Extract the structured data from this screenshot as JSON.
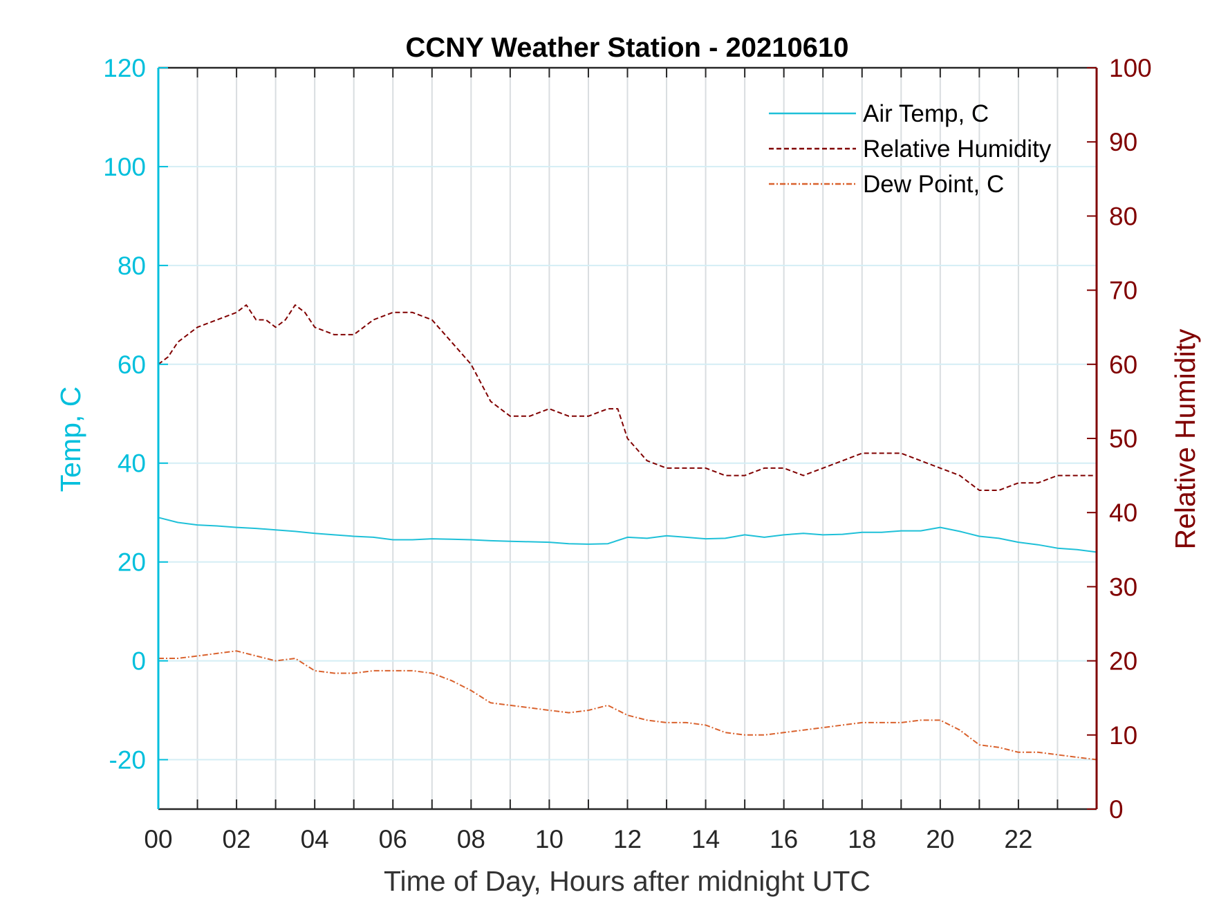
{
  "chart_data": {
    "type": "line",
    "title": "CCNY Weather Station - 20210610",
    "xlabel": "Time of Day, Hours after midnight UTC",
    "ylabel_left": "Temp, C",
    "ylabel_right": "Relative Humidity",
    "xlim": [
      0,
      24
    ],
    "ylim_left": [
      -30,
      120
    ],
    "ylim_right": [
      0,
      100
    ],
    "x_ticks": [
      0,
      2,
      4,
      6,
      8,
      10,
      12,
      14,
      16,
      18,
      20,
      22
    ],
    "x_tick_labels": [
      "00",
      "02",
      "04",
      "06",
      "08",
      "10",
      "12",
      "14",
      "16",
      "18",
      "20",
      "22"
    ],
    "y_left_ticks": [
      -20,
      0,
      20,
      40,
      60,
      80,
      100,
      120
    ],
    "y_left_tick_labels": [
      "-20",
      "0",
      "20",
      "40",
      "60",
      "80",
      "100",
      "120"
    ],
    "y_right_ticks": [
      0,
      10,
      20,
      30,
      40,
      50,
      60,
      70,
      80,
      90,
      100
    ],
    "y_right_tick_labels": [
      "0",
      "10",
      "20",
      "30",
      "40",
      "50",
      "60",
      "70",
      "80",
      "90",
      "100"
    ],
    "grid": true,
    "legend_position": "top-right",
    "colors": {
      "left_axis": "#00bfdc",
      "right_axis": "#800000",
      "grid_vertical": "#d9dde0",
      "grid_horizontal": "#d4eef5"
    },
    "series": [
      {
        "name": "Air Temp, C",
        "axis": "left",
        "color": "#1ec0d8",
        "dash": "solid",
        "x": [
          0,
          0.5,
          1,
          1.5,
          2,
          2.5,
          3,
          3.5,
          4,
          4.5,
          5,
          5.5,
          6,
          6.5,
          7,
          7.5,
          8,
          8.5,
          9,
          9.5,
          10,
          10.5,
          11,
          11.5,
          12,
          12.5,
          13,
          13.5,
          14,
          14.5,
          15,
          15.5,
          16,
          16.5,
          17,
          17.5,
          18,
          18.5,
          19,
          19.5,
          20,
          20.5,
          21,
          21.5,
          22,
          22.5,
          23,
          23.5,
          24
        ],
        "y": [
          29,
          28,
          27.5,
          27.3,
          27,
          26.8,
          26.5,
          26.2,
          25.8,
          25.5,
          25.2,
          25,
          24.5,
          24.5,
          24.7,
          24.6,
          24.5,
          24.3,
          24.2,
          24.1,
          24,
          23.7,
          23.6,
          23.7,
          25,
          24.8,
          25.3,
          25,
          24.7,
          24.8,
          25.5,
          25,
          25.5,
          25.8,
          25.5,
          25.6,
          26,
          26,
          26.3,
          26.3,
          27,
          26.2,
          25.2,
          24.8,
          24,
          23.5,
          22.8,
          22.5,
          22
        ]
      },
      {
        "name": "Relative Humidity",
        "axis": "right",
        "color": "#800000",
        "dash": "dashed",
        "x": [
          0,
          0.25,
          0.5,
          0.75,
          1,
          1.5,
          2,
          2.25,
          2.5,
          2.75,
          3,
          3.25,
          3.5,
          3.75,
          4,
          4.5,
          5,
          5.5,
          6,
          6.5,
          7,
          7.5,
          8,
          8.5,
          9,
          9.5,
          10,
          10.5,
          11,
          11.5,
          11.75,
          12,
          12.5,
          13,
          13.5,
          14,
          14.5,
          15,
          15.5,
          16,
          16.5,
          17,
          17.5,
          18,
          18.5,
          19,
          19.5,
          20,
          20.5,
          21,
          21.5,
          22,
          22.5,
          23,
          23.5,
          24
        ],
        "y": [
          60,
          61,
          63,
          64,
          65,
          66,
          67,
          68,
          66,
          66,
          65,
          66,
          68,
          67,
          65,
          64,
          64,
          66,
          67,
          67,
          66,
          63,
          60,
          55,
          53,
          53,
          54,
          53,
          53,
          54,
          54,
          50,
          47,
          46,
          46,
          46,
          45,
          45,
          46,
          46,
          45,
          46,
          47,
          48,
          48,
          48,
          47,
          46,
          45,
          43,
          43,
          44,
          44,
          45,
          45,
          45
        ]
      },
      {
        "name": "Dew Point, C",
        "axis": "left",
        "color": "#d9612c",
        "dash": "dashdot",
        "x": [
          0,
          0.5,
          1,
          1.5,
          2,
          2.5,
          3,
          3.5,
          4,
          4.5,
          5,
          5.5,
          6,
          6.5,
          7,
          7.5,
          8,
          8.5,
          9,
          9.5,
          10,
          10.5,
          11,
          11.5,
          12,
          12.5,
          13,
          13.5,
          14,
          14.5,
          15,
          15.5,
          16,
          16.5,
          17,
          17.5,
          18,
          18.5,
          19,
          19.5,
          20,
          20.5,
          21,
          21.5,
          22,
          22.5,
          23,
          23.5,
          24
        ],
        "y": [
          0.5,
          0.5,
          1,
          1.5,
          2,
          1,
          0,
          0.5,
          -2,
          -2.5,
          -2.5,
          -2,
          -2,
          -2,
          -2.5,
          -4,
          -6,
          -8.5,
          -9,
          -9.5,
          -10,
          -10.5,
          -10,
          -9,
          -11,
          -12,
          -12.5,
          -12.5,
          -13,
          -14.5,
          -15,
          -15,
          -14.5,
          -14,
          -13.5,
          -13,
          -12.5,
          -12.5,
          -12.5,
          -12,
          -12,
          -14,
          -17,
          -17.5,
          -18.5,
          -18.5,
          -19,
          -19.5,
          -20
        ]
      }
    ]
  }
}
